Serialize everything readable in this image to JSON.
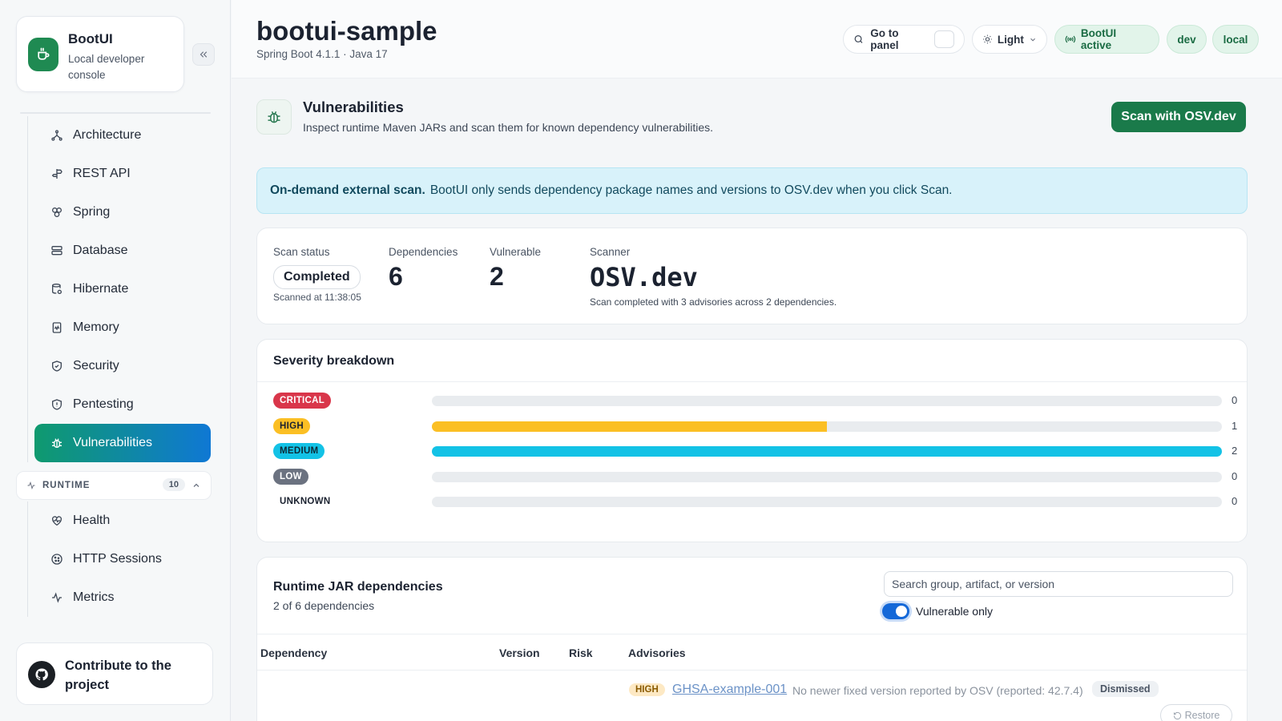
{
  "brand": {
    "title": "BootUI",
    "subtitle": "Local developer console"
  },
  "sidebar": {
    "items": [
      {
        "label": "Architecture",
        "icon": "architecture-icon"
      },
      {
        "label": "REST API",
        "icon": "signpost-icon"
      },
      {
        "label": "Spring",
        "icon": "spring-icon"
      },
      {
        "label": "Database",
        "icon": "database-icon"
      },
      {
        "label": "Hibernate",
        "icon": "hibernate-icon"
      },
      {
        "label": "Memory",
        "icon": "memory-icon"
      },
      {
        "label": "Security",
        "icon": "shield-icon"
      },
      {
        "label": "Pentesting",
        "icon": "shield-alert-icon"
      },
      {
        "label": "Vulnerabilities",
        "icon": "bug-icon",
        "active": true
      }
    ],
    "runtime_group": {
      "label": "RUNTIME",
      "count": "10"
    },
    "runtime_items": [
      {
        "label": "Health",
        "icon": "heart-pulse-icon"
      },
      {
        "label": "HTTP Sessions",
        "icon": "cookie-icon"
      },
      {
        "label": "Metrics",
        "icon": "activity-icon"
      }
    ],
    "contribute": "Contribute to the project"
  },
  "header": {
    "title": "bootui-sample",
    "subtitle": "Spring Boot 4.1.1 · Java 17",
    "goto_label": "Go to panel",
    "theme_label": "Light",
    "status_label": "BootUI active",
    "profile_dev": "dev",
    "profile_local": "local"
  },
  "panel": {
    "title": "Vulnerabilities",
    "subtitle": "Inspect runtime Maven JARs and scan them for known dependency vulnerabilities.",
    "scan_button": "Scan with OSV.dev"
  },
  "notice": {
    "bold": "On-demand external scan.",
    "text": "BootUI only sends dependency package names and versions to OSV.dev when you click Scan."
  },
  "stats": {
    "status_label": "Scan status",
    "status_value": "Completed",
    "scanned_at": "Scanned at 11:38:05",
    "deps_label": "Dependencies",
    "deps_value": "6",
    "vuln_label": "Vulnerable",
    "vuln_value": "2",
    "scanner_label": "Scanner",
    "scanner_value": "OSV.dev",
    "scanner_note": "Scan completed with 3 advisories across 2 dependencies."
  },
  "severity": {
    "title": "Severity breakdown",
    "max": 2,
    "rows": [
      {
        "label": "CRITICAL",
        "count": 0,
        "badge_bg": "#d9364a",
        "badge_fg": "#ffffff",
        "fill": "#d9364a"
      },
      {
        "label": "HIGH",
        "count": 1,
        "badge_bg": "#fbbf24",
        "badge_fg": "#1b2230",
        "fill": "#fbbf24"
      },
      {
        "label": "MEDIUM",
        "count": 2,
        "badge_bg": "#13c2e6",
        "badge_fg": "#0d2a36",
        "fill": "#13c2e6"
      },
      {
        "label": "LOW",
        "count": 0,
        "badge_bg": "#6b7280",
        "badge_fg": "#ffffff",
        "fill": "#6b7280"
      },
      {
        "label": "UNKNOWN",
        "count": 0,
        "badge_bg": "transparent",
        "badge_fg": "#1b2230",
        "fill": "#9ca3af"
      }
    ]
  },
  "deps": {
    "title": "Runtime JAR dependencies",
    "subtitle": "2 of 6 dependencies",
    "search_placeholder": "Search group, artifact, or version",
    "toggle_label": "Vulnerable only",
    "columns": [
      "Dependency",
      "Version",
      "Risk",
      "Advisories"
    ],
    "advisory": {
      "severity": "HIGH",
      "id": "GHSA-example-001",
      "note": "No newer fixed version reported by OSV (reported: 42.7.4)",
      "state": "Dismissed",
      "restore": "Restore"
    }
  }
}
